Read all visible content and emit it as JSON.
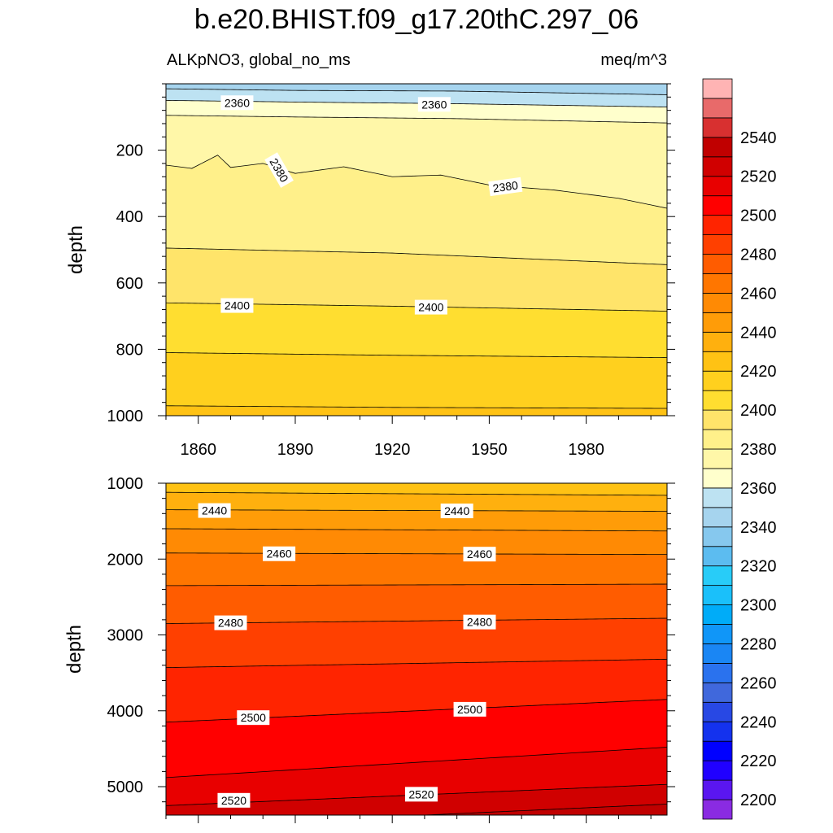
{
  "title": "b.e20.BHIST.f09_g17.20thC.297_06",
  "chart_data": [
    {
      "type": "heatmap",
      "name": "upper-panel",
      "subtitle_left": "ALKpNO3, global_no_ms",
      "subtitle_right": "meq/m^3",
      "ylabel": "depth",
      "xlim": [
        1850,
        2005
      ],
      "ylim": [
        0,
        1000
      ],
      "y_inverted": true,
      "xticks": [
        1860,
        1890,
        1920,
        1950,
        1980
      ],
      "xtick_labels": [
        "1860",
        "1890",
        "1920",
        "1950",
        "1980"
      ],
      "yticks": [
        200,
        400,
        600,
        800,
        1000
      ],
      "ytick_labels": [
        "200",
        "400",
        "600",
        "800",
        "1000"
      ],
      "isolines": [
        {
          "level": 2350,
          "x": [
            1850,
            1890,
            1940,
            2005
          ],
          "y": [
            15,
            20,
            22,
            33
          ]
        },
        {
          "level": 2360,
          "x": [
            1850,
            1890,
            1940,
            2005
          ],
          "y": [
            50,
            55,
            60,
            70
          ]
        },
        {
          "level": 2370,
          "x": [
            1850,
            1890,
            1940,
            2005
          ],
          "y": [
            95,
            100,
            105,
            118
          ]
        },
        {
          "level": 2380,
          "x": [
            1850,
            1858,
            1866,
            1870,
            1880,
            1890,
            1905,
            1920,
            1935,
            1950,
            1970,
            1990,
            2005
          ],
          "y": [
            245,
            255,
            215,
            252,
            240,
            270,
            250,
            280,
            275,
            305,
            320,
            345,
            375
          ]
        },
        {
          "level": 2390,
          "x": [
            1850,
            1920,
            2005
          ],
          "y": [
            495,
            510,
            545
          ]
        },
        {
          "level": 2400,
          "x": [
            1850,
            1920,
            2005
          ],
          "y": [
            660,
            670,
            685
          ]
        },
        {
          "level": 2410,
          "x": [
            1850,
            1920,
            2005
          ],
          "y": [
            810,
            818,
            825
          ]
        },
        {
          "level": 2420,
          "x": [
            1850,
            1920,
            2005
          ],
          "y": [
            970,
            975,
            978
          ]
        }
      ],
      "contour_labels": [
        {
          "text": "2360",
          "x": 1872,
          "y": 57
        },
        {
          "text": "2360",
          "x": 1933,
          "y": 62
        },
        {
          "text": "2380",
          "x": 1885,
          "y": 260
        },
        {
          "text": "2380",
          "x": 1955,
          "y": 310
        },
        {
          "text": "2400",
          "x": 1872,
          "y": 668
        },
        {
          "text": "2400",
          "x": 1932,
          "y": 673
        }
      ]
    },
    {
      "type": "heatmap",
      "name": "lower-panel",
      "ylabel": "depth",
      "xlim": [
        1850,
        2005
      ],
      "ylim": [
        1000,
        5375
      ],
      "y_inverted": true,
      "yticks": [
        1000,
        2000,
        3000,
        4000,
        5000
      ],
      "ytick_labels": [
        "1000",
        "2000",
        "3000",
        "4000",
        "5000"
      ],
      "isolines": [
        {
          "level": 2430,
          "x": [
            1850,
            2005
          ],
          "y": [
            1120,
            1160
          ]
        },
        {
          "level": 2440,
          "x": [
            1850,
            2005
          ],
          "y": [
            1350,
            1370
          ]
        },
        {
          "level": 2450,
          "x": [
            1850,
            2005
          ],
          "y": [
            1600,
            1630
          ]
        },
        {
          "level": 2460,
          "x": [
            1850,
            2005
          ],
          "y": [
            1920,
            1940
          ]
        },
        {
          "level": 2470,
          "x": [
            1850,
            2005
          ],
          "y": [
            2350,
            2330
          ]
        },
        {
          "level": 2480,
          "x": [
            1850,
            2005
          ],
          "y": [
            2850,
            2780
          ]
        },
        {
          "level": 2490,
          "x": [
            1850,
            2005
          ],
          "y": [
            3430,
            3320
          ]
        },
        {
          "level": 2500,
          "x": [
            1850,
            2005
          ],
          "y": [
            4150,
            3850
          ]
        },
        {
          "level": 2510,
          "x": [
            1850,
            2005
          ],
          "y": [
            4880,
            4480
          ]
        },
        {
          "level": 2520,
          "x": [
            1850,
            2005
          ],
          "y": [
            5250,
            4970
          ]
        },
        {
          "level": 2530,
          "x": [
            1930,
            2005
          ],
          "y": [
            5375,
            5230
          ]
        }
      ],
      "contour_labels": [
        {
          "text": "2440",
          "x": 1865,
          "y": 1360
        },
        {
          "text": "2440",
          "x": 1940,
          "y": 1365
        },
        {
          "text": "2460",
          "x": 1885,
          "y": 1930
        },
        {
          "text": "2460",
          "x": 1947,
          "y": 1935
        },
        {
          "text": "2480",
          "x": 1870,
          "y": 2840
        },
        {
          "text": "2480",
          "x": 1947,
          "y": 2830
        },
        {
          "text": "2500",
          "x": 1877,
          "y": 4090
        },
        {
          "text": "2500",
          "x": 1944,
          "y": 3980
        },
        {
          "text": "2520",
          "x": 1871,
          "y": 5180
        },
        {
          "text": "2520",
          "x": 1929,
          "y": 5100
        }
      ]
    }
  ],
  "colorbar": {
    "levels": [
      2190,
      2200,
      2210,
      2220,
      2230,
      2240,
      2250,
      2260,
      2270,
      2280,
      2290,
      2300,
      2310,
      2320,
      2330,
      2340,
      2350,
      2360,
      2370,
      2380,
      2390,
      2400,
      2410,
      2420,
      2430,
      2440,
      2450,
      2460,
      2470,
      2480,
      2490,
      2500,
      2510,
      2520,
      2530,
      2540,
      2550,
      2560
    ],
    "colors": [
      "#8a2be2",
      "#5a16f0",
      "#2000ff",
      "#0000ff",
      "#1432ee",
      "#2848e4",
      "#4068dc",
      "#2a72ee",
      "#1a86f4",
      "#1096f8",
      "#00acf8",
      "#1ac0fa",
      "#28ccf8",
      "#5cbcf0",
      "#86c8ee",
      "#a6d4ee",
      "#bde2f2",
      "#ffffcc",
      "#fff7a8",
      "#fff08a",
      "#ffe46a",
      "#ffde30",
      "#ffd01e",
      "#ffc214",
      "#ffb00e",
      "#ff9c08",
      "#ff8a04",
      "#ff7600",
      "#ff5c00",
      "#ff4000",
      "#ff2400",
      "#ff0000",
      "#e80000",
      "#d00000",
      "#c00000",
      "#d83030",
      "#e86a6a",
      "#ffb4b4"
    ],
    "tick_labels": [
      "2200",
      "2220",
      "2240",
      "2260",
      "2280",
      "2300",
      "2320",
      "2340",
      "2360",
      "2380",
      "2400",
      "2420",
      "2440",
      "2460",
      "2480",
      "2500",
      "2520",
      "2540"
    ]
  }
}
